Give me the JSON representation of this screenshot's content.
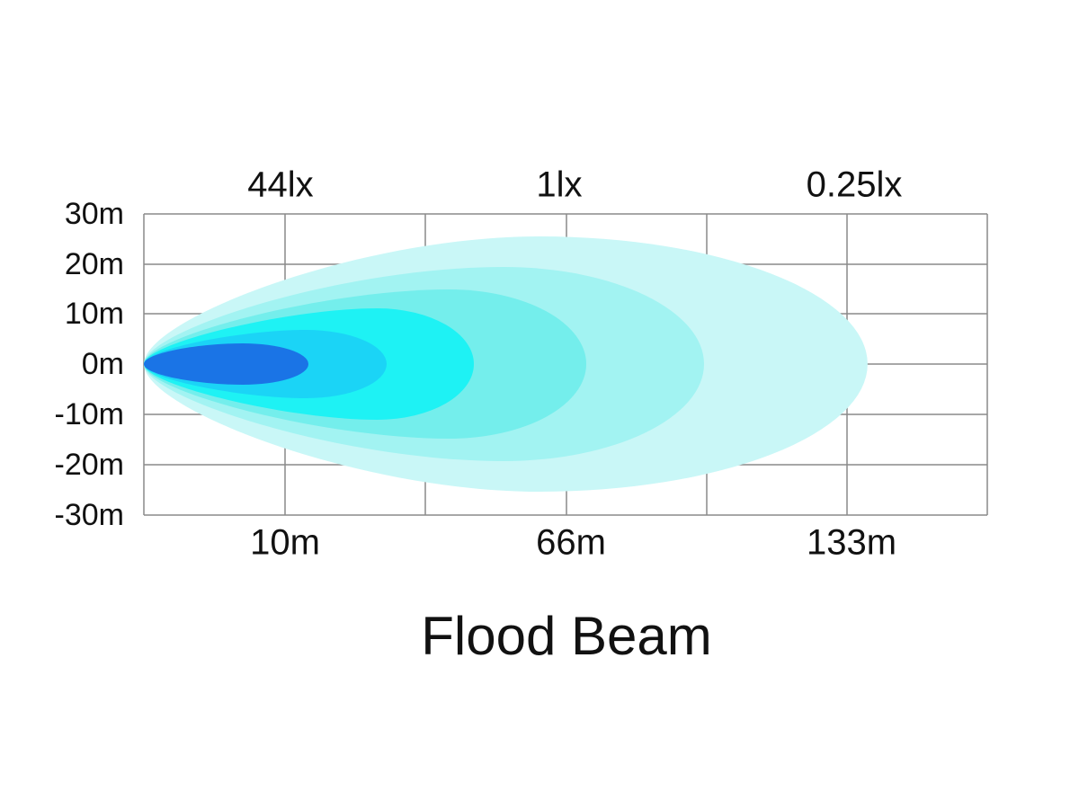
{
  "title": "Flood Beam",
  "y_axis_labels": [
    "30m",
    "20m",
    "10m",
    "0m",
    "-10m",
    "-20m",
    "-30m"
  ],
  "lux_labels": [
    "44lx",
    "1lx",
    "0.25lx"
  ],
  "distance_labels": [
    "10m",
    "66m",
    "133m"
  ]
}
